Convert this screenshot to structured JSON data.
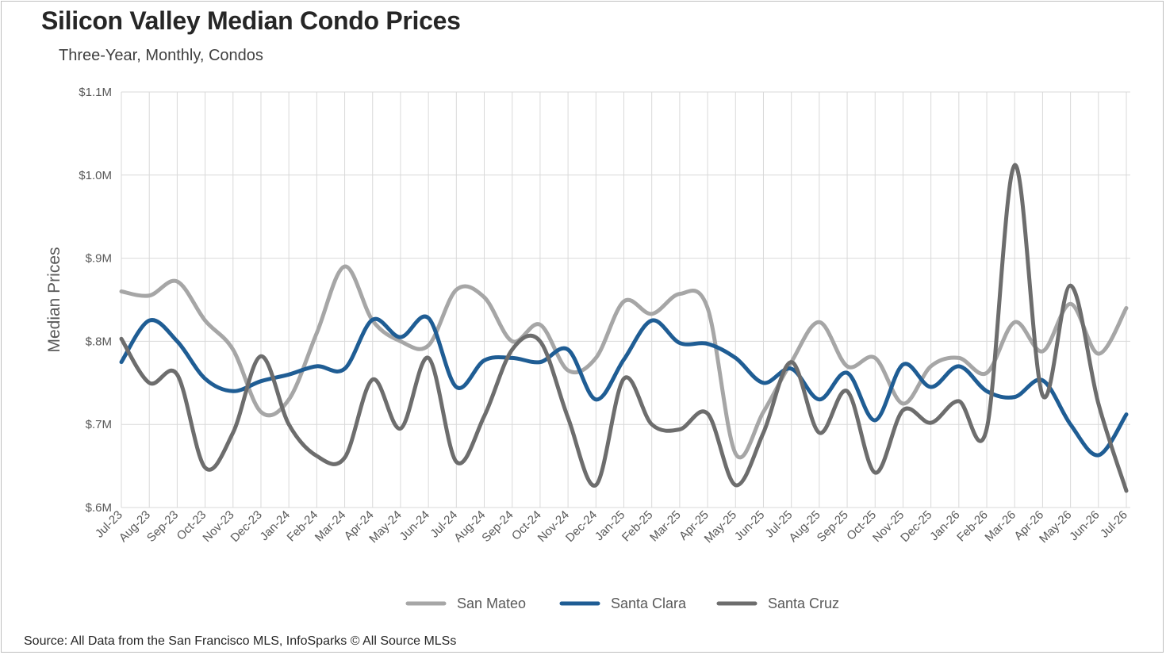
{
  "chart": {
    "title": "Silicon Valley Median Condo Prices",
    "subtitle": "Three-Year, Monthly, Condos",
    "source": "Source: All Data from the San Francisco MLS, InfoSparks © All Source MLSs"
  },
  "chart_data": {
    "type": "line",
    "title": "Silicon Valley Median Condo Prices",
    "subtitle": "Three-Year, Monthly, Condos",
    "xlabel": "",
    "ylabel": "Median Prices",
    "ylim": [
      600000,
      1100000
    ],
    "y_ticks": [
      {
        "value": 600000,
        "label": "$.6M"
      },
      {
        "value": 700000,
        "label": "$.7M"
      },
      {
        "value": 800000,
        "label": "$.8M"
      },
      {
        "value": 900000,
        "label": "$.9M"
      },
      {
        "value": 1000000,
        "label": "$1.0M"
      },
      {
        "value": 1100000,
        "label": "$1.1M"
      }
    ],
    "grid": true,
    "legend_position": "bottom",
    "categories": [
      "Jul-23",
      "Aug-23",
      "Sep-23",
      "Oct-23",
      "Nov-23",
      "Dec-23",
      "Jan-24",
      "Feb-24",
      "Mar-24",
      "Apr-24",
      "May-24",
      "Jun-24",
      "Jul-24",
      "Aug-24",
      "Sep-24",
      "Oct-24",
      "Nov-24",
      "Dec-24",
      "Jan-25",
      "Feb-25",
      "Mar-25",
      "Apr-25",
      "May-25",
      "Jun-25",
      "Jul-25",
      "Aug-25",
      "Sep-25",
      "Oct-25",
      "Nov-25",
      "Dec-25",
      "Jan-26",
      "Feb-26",
      "Mar-26",
      "Apr-26",
      "May-26",
      "Jun-26",
      "Jul-26"
    ],
    "series": [
      {
        "name": "San Mateo",
        "color": "#a6a6a6",
        "values": [
          860000,
          855000,
          872000,
          825000,
          790000,
          715000,
          730000,
          810000,
          890000,
          825000,
          800000,
          795000,
          862000,
          853000,
          800000,
          820000,
          765000,
          780000,
          848000,
          833000,
          857000,
          840000,
          665000,
          715000,
          775000,
          823000,
          770000,
          780000,
          725000,
          770000,
          780000,
          762000,
          823000,
          788000,
          845000,
          785000,
          840000
        ]
      },
      {
        "name": "Santa Clara",
        "color": "#1f5d94",
        "values": [
          775000,
          825000,
          800000,
          755000,
          740000,
          752000,
          760000,
          770000,
          767000,
          826000,
          805000,
          828000,
          745000,
          777000,
          780000,
          775000,
          790000,
          730000,
          778000,
          825000,
          798000,
          797000,
          780000,
          750000,
          767000,
          730000,
          762000,
          705000,
          772000,
          745000,
          770000,
          740000,
          733000,
          753000,
          700000,
          663000,
          712000
        ]
      },
      {
        "name": "Santa Cruz",
        "color": "#6d6d6d",
        "values": [
          803000,
          750000,
          760000,
          648000,
          690000,
          782000,
          700000,
          662000,
          660000,
          754000,
          695000,
          780000,
          655000,
          710000,
          790000,
          800000,
          708000,
          627000,
          755000,
          700000,
          694000,
          713000,
          627000,
          690000,
          775000,
          690000,
          740000,
          642000,
          717000,
          702000,
          728000,
          695000,
          1012000,
          735000,
          867000,
          725000,
          620000
        ]
      }
    ]
  },
  "legend": {
    "items": [
      "San Mateo",
      "Santa Clara",
      "Santa Cruz"
    ]
  }
}
